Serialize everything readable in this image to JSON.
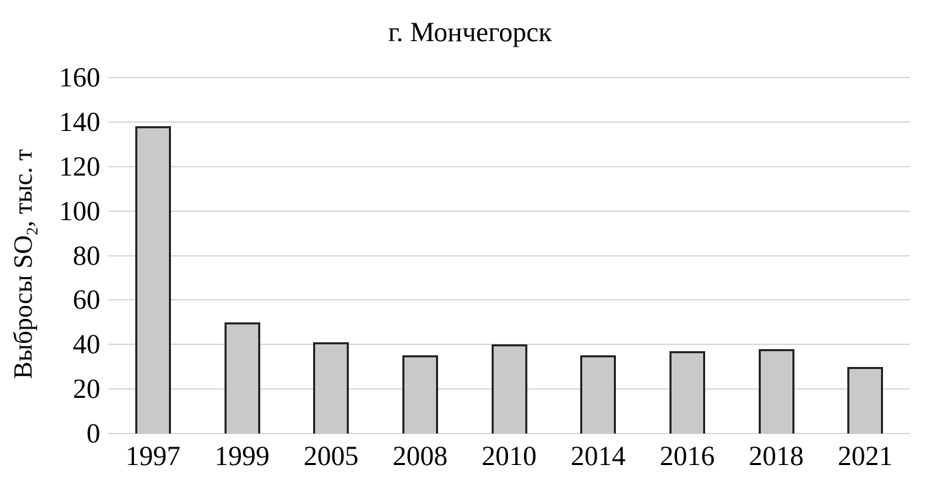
{
  "figure": {
    "title": "г. Мончегорск"
  },
  "y_axis": {
    "label_prefix": "Выбросы SO",
    "label_sub": "2",
    "label_suffix": ", тыс. т"
  },
  "chart_data": {
    "type": "bar",
    "title": "г. Мончегорск",
    "categories": [
      "1997",
      "1999",
      "2005",
      "2008",
      "2010",
      "2014",
      "2016",
      "2018",
      "2021"
    ],
    "values": [
      138,
      50,
      41,
      35,
      40,
      35,
      37,
      38,
      30
    ],
    "xlabel": "",
    "ylabel": "Выбросы SO₂, тыс. т",
    "ylim": [
      0,
      160
    ],
    "yticks": [
      0,
      20,
      40,
      60,
      80,
      100,
      120,
      140,
      160
    ],
    "grid": true,
    "legend": false,
    "colors": {
      "bar_fill": "#c9c9c9",
      "bar_border": "#262626",
      "gridline": "#d9d9d9",
      "axis_line": "#d9d9d9",
      "text": "#000000",
      "background": "#ffffff"
    }
  }
}
